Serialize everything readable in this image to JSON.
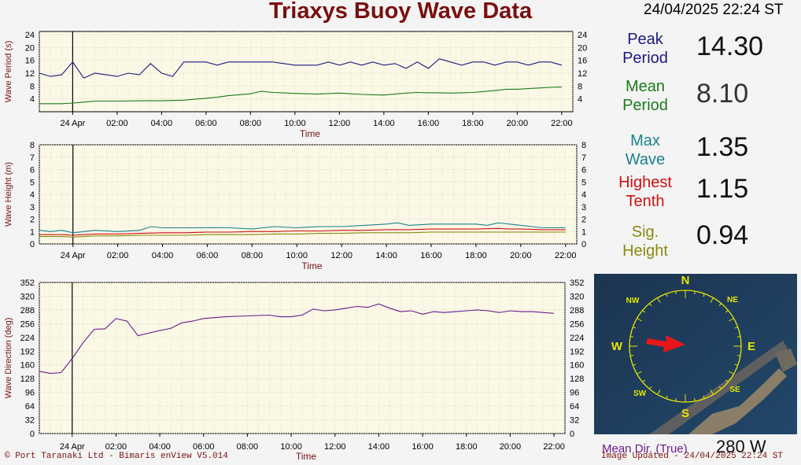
{
  "header": {
    "title": "Triaxys Buoy Wave Data",
    "datetime": "24/04/2025 22:24 ST"
  },
  "stats": [
    {
      "label_line1": "Peak",
      "label_line2": "Period",
      "value": "14.30",
      "color": "#1a1a80"
    },
    {
      "label_line1": "Mean",
      "label_line2": "Period",
      "value": "8.10",
      "color": "#1a7a1a"
    },
    {
      "label_line1": "Max",
      "label_line2": "Wave",
      "value": "1.35",
      "color": "#1a8090"
    },
    {
      "label_line1": "Highest",
      "label_line2": "Tenth",
      "value": "1.15",
      "color": "#d01010"
    },
    {
      "label_line1": "Sig.",
      "label_line2": "Height",
      "value": "0.94",
      "color": "#8a8a10"
    }
  ],
  "compass": {
    "labels": {
      "N": "N",
      "NE": "NE",
      "E": "E",
      "SE": "SE",
      "S": "S",
      "SW": "SW",
      "W": "W",
      "NW": "NW"
    },
    "arrow_direction_deg": 280
  },
  "mean_dir": {
    "label": "Mean Dir. (True)",
    "value": "280 W"
  },
  "footer": {
    "left": "© Port Taranaki Ltd - Bimaris enView V5.014",
    "right": "Image Updated - 24/04/2025 22:24 ST"
  },
  "chart_data": [
    {
      "type": "line",
      "ylabel": "Wave Period (s)",
      "xlabel": "Time",
      "ylim": [
        0,
        25
      ],
      "yticks": [
        4,
        8,
        12,
        16,
        20,
        24
      ],
      "xticks": [
        "24 Apr",
        "02:00",
        "04:00",
        "06:00",
        "08:00",
        "10:00",
        "12:00",
        "14:00",
        "16:00",
        "18:00",
        "20:00",
        "22:00"
      ],
      "x_range_hours": [
        -1.5,
        22.5
      ],
      "grid": true,
      "series": [
        {
          "color": "#1a1a80",
          "x": [
            -1.5,
            -1,
            -0.5,
            0,
            0.5,
            1,
            2,
            2.5,
            3,
            3.5,
            4,
            4.5,
            5,
            6,
            6.5,
            7,
            8,
            9,
            10,
            11,
            11.5,
            12,
            12.5,
            13,
            13.5,
            14,
            14.5,
            15,
            15.5,
            16,
            16.5,
            17,
            17.5,
            18,
            18.5,
            19,
            19.5,
            20,
            20.5,
            21,
            21.5,
            22
          ],
          "y": [
            12,
            11,
            11.5,
            15.5,
            10.5,
            12,
            11,
            12,
            11.5,
            15,
            12,
            11,
            15.5,
            15.5,
            14.5,
            15.5,
            15.5,
            15.5,
            14.5,
            14.5,
            15.5,
            14.5,
            15.5,
            14.5,
            15.5,
            14.5,
            15,
            13.5,
            15.5,
            13.5,
            16.5,
            15.5,
            14.5,
            15.5,
            15.5,
            14.5,
            15.5,
            15.5,
            14.5,
            15.5,
            15.5,
            14.5
          ]
        },
        {
          "color": "#1a7a1a",
          "x": [
            -1.5,
            -0.5,
            0,
            0.5,
            1,
            2,
            3,
            4,
            5,
            6,
            6.5,
            7,
            8,
            8.5,
            9,
            10,
            11,
            12,
            13,
            14,
            15,
            15.5,
            16,
            16.5,
            17,
            17.5,
            18,
            18.5,
            19,
            19.5,
            20,
            20.5,
            21,
            21.5,
            22
          ],
          "y": [
            2.5,
            2.5,
            2.7,
            3,
            3.3,
            3.3,
            3.4,
            3.4,
            3.6,
            4.2,
            4.5,
            5,
            5.6,
            6.4,
            6,
            5.7,
            5.5,
            5.8,
            5.4,
            5.2,
            5.8,
            6,
            5.9,
            5.9,
            5.8,
            5.9,
            6,
            6.3,
            6.6,
            7,
            7,
            7.2,
            7.4,
            7.6,
            7.7
          ]
        }
      ]
    },
    {
      "type": "line",
      "ylabel": "Wave Height (m)",
      "xlabel": "Time",
      "ylim": [
        0,
        8
      ],
      "yticks": [
        0,
        1,
        2,
        3,
        4,
        5,
        6,
        7,
        8
      ],
      "xticks": [
        "24 Apr",
        "02:00",
        "04:00",
        "06:00",
        "08:00",
        "10:00",
        "12:00",
        "14:00",
        "16:00",
        "18:00",
        "20:00",
        "22:00"
      ],
      "x_range_hours": [
        -1.5,
        22.5
      ],
      "grid": true,
      "series": [
        {
          "color": "#1a8090",
          "x": [
            -1.5,
            -1,
            -0.5,
            0,
            0.5,
            1,
            2,
            3,
            3.5,
            4,
            5,
            6,
            7,
            8,
            9,
            10,
            11,
            12,
            13,
            14,
            14.5,
            15,
            16,
            17,
            18,
            18.5,
            19,
            19.5,
            20,
            20.5,
            21,
            22
          ],
          "y": [
            1.1,
            1.0,
            1.1,
            0.9,
            1.0,
            1.1,
            1.0,
            1.1,
            1.4,
            1.3,
            1.3,
            1.3,
            1.3,
            1.2,
            1.4,
            1.3,
            1.4,
            1.4,
            1.5,
            1.6,
            1.7,
            1.5,
            1.6,
            1.6,
            1.6,
            1.5,
            1.7,
            1.6,
            1.5,
            1.4,
            1.3,
            1.3
          ]
        },
        {
          "color": "#d01010",
          "x": [
            -1.5,
            -0.5,
            0,
            0.5,
            1,
            2,
            3,
            4,
            5,
            6,
            7,
            8,
            9,
            10,
            11,
            12,
            13,
            14,
            15,
            16,
            17,
            18,
            19,
            19.5,
            20,
            21,
            22
          ],
          "y": [
            0.75,
            0.75,
            0.7,
            0.75,
            0.8,
            0.8,
            0.85,
            0.9,
            0.9,
            0.95,
            0.95,
            1.0,
            1.0,
            1.05,
            1.05,
            1.1,
            1.1,
            1.15,
            1.15,
            1.2,
            1.2,
            1.2,
            1.25,
            1.2,
            1.2,
            1.15,
            1.15
          ]
        },
        {
          "color": "#8a8a10",
          "x": [
            -1.5,
            -0.5,
            0,
            0.5,
            1,
            2,
            3,
            4,
            5,
            6,
            7,
            8,
            9,
            10,
            11,
            12,
            13,
            14,
            15,
            16,
            17,
            18,
            19,
            20,
            21,
            22
          ],
          "y": [
            0.6,
            0.6,
            0.55,
            0.6,
            0.65,
            0.65,
            0.7,
            0.7,
            0.7,
            0.75,
            0.75,
            0.75,
            0.8,
            0.8,
            0.85,
            0.85,
            0.9,
            0.9,
            0.9,
            0.95,
            0.95,
            0.95,
            0.95,
            0.95,
            0.95,
            0.95
          ]
        }
      ]
    },
    {
      "type": "line",
      "ylabel": "Wave Direction (deg)",
      "xlabel": "Time",
      "ylim": [
        0,
        352
      ],
      "yticks": [
        0,
        32,
        64,
        96,
        128,
        160,
        192,
        224,
        256,
        288,
        320,
        352
      ],
      "xticks": [
        "24 Apr",
        "02:00",
        "04:00",
        "06:00",
        "08:00",
        "10:00",
        "12:00",
        "14:00",
        "16:00",
        "18:00",
        "20:00",
        "22:00"
      ],
      "x_range_hours": [
        -1.5,
        22.5
      ],
      "grid": true,
      "series": [
        {
          "color": "#6a1b8e",
          "x": [
            -1.5,
            -1,
            -0.5,
            0,
            0.5,
            1,
            1.5,
            2,
            2.5,
            3,
            4,
            4.5,
            5,
            5.5,
            6,
            6.5,
            7,
            8,
            9,
            9.5,
            10,
            10.5,
            11,
            11.5,
            12,
            12.5,
            13,
            13.5,
            14,
            14.5,
            15,
            15.5,
            16,
            16.5,
            17,
            17.5,
            18,
            18.5,
            19,
            19.5,
            20,
            20.5,
            21,
            21.5,
            22
          ],
          "y": [
            145,
            140,
            142,
            175,
            212,
            243,
            244,
            268,
            262,
            228,
            240,
            245,
            258,
            262,
            268,
            270,
            272,
            274,
            276,
            272,
            272,
            276,
            290,
            286,
            288,
            292,
            296,
            294,
            302,
            292,
            284,
            286,
            278,
            284,
            282,
            284,
            286,
            288,
            286,
            282,
            286,
            284,
            284,
            282,
            280
          ]
        }
      ]
    }
  ]
}
